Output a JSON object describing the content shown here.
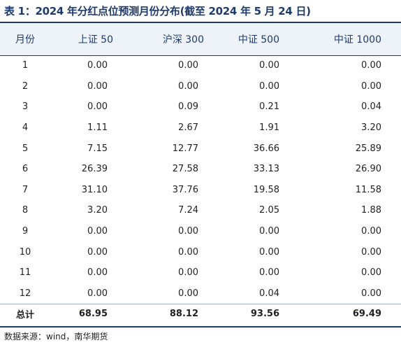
{
  "title": "表 1：2024 年分红点位预测月份分布(截至 2024 年 5 月 24 日)",
  "header": {
    "month": "月份",
    "sz50": "上证 50",
    "hs300": "沪深 300",
    "zz500": "中证 500",
    "zz1000": "中证 1000"
  },
  "rows": [
    {
      "month": "1",
      "sz50": "0.00",
      "hs300": "0.00",
      "zz500": "0.00",
      "zz1000": "0.00"
    },
    {
      "month": "2",
      "sz50": "0.00",
      "hs300": "0.00",
      "zz500": "0.00",
      "zz1000": "0.00"
    },
    {
      "month": "3",
      "sz50": "0.00",
      "hs300": "0.09",
      "zz500": "0.21",
      "zz1000": "0.04"
    },
    {
      "month": "4",
      "sz50": "1.11",
      "hs300": "2.67",
      "zz500": "1.91",
      "zz1000": "3.20"
    },
    {
      "month": "5",
      "sz50": "7.15",
      "hs300": "12.77",
      "zz500": "36.66",
      "zz1000": "25.89"
    },
    {
      "month": "6",
      "sz50": "26.39",
      "hs300": "27.58",
      "zz500": "33.13",
      "zz1000": "26.90"
    },
    {
      "month": "7",
      "sz50": "31.10",
      "hs300": "37.76",
      "zz500": "19.58",
      "zz1000": "11.58"
    },
    {
      "month": "8",
      "sz50": "3.20",
      "hs300": "7.24",
      "zz500": "2.05",
      "zz1000": "1.88"
    },
    {
      "month": "9",
      "sz50": "0.00",
      "hs300": "0.00",
      "zz500": "0.00",
      "zz1000": "0.00"
    },
    {
      "month": "10",
      "sz50": "0.00",
      "hs300": "0.00",
      "zz500": "0.00",
      "zz1000": "0.00"
    },
    {
      "month": "11",
      "sz50": "0.00",
      "hs300": "0.00",
      "zz500": "0.00",
      "zz1000": "0.00"
    },
    {
      "month": "12",
      "sz50": "0.00",
      "hs300": "0.00",
      "zz500": "0.04",
      "zz1000": "0.00"
    }
  ],
  "total": {
    "month": "总计",
    "sz50": "68.95",
    "hs300": "88.12",
    "zz500": "93.56",
    "zz1000": "69.49"
  },
  "source": "数据来源：wind，南华期货",
  "colors": {
    "accent": "#1f3b6b",
    "header_bg": "#eef3fa"
  }
}
